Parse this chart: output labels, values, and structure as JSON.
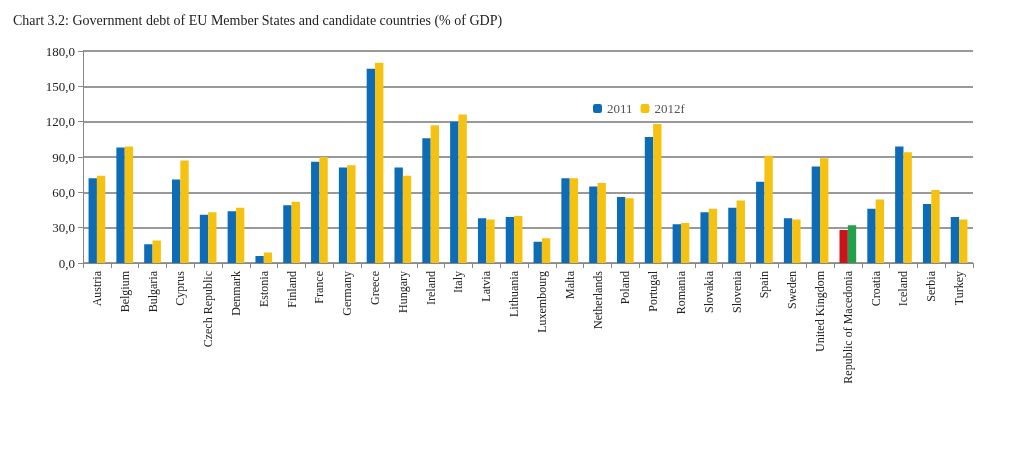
{
  "chart_data": {
    "type": "bar",
    "title": "Chart 3.2: Government debt of EU Member States and candidate countries (% of GDP)",
    "categories": [
      "Austria",
      "Belgium",
      "Bulgaria",
      "Cyprus",
      "Czech Republic",
      "Denmark",
      "Estonia",
      "Finland",
      "France",
      "Germany",
      "Greece",
      "Hungary",
      "Ireland",
      "Italy",
      "Latvia",
      "Lithuania",
      "Luxembourg",
      "Malta",
      "Netherlands",
      "Poland",
      "Portugal",
      "Romania",
      "Slovakia",
      "Slovenia",
      "Spain",
      "Sweden",
      "United Kingdom",
      "Republic of Macedonia",
      "Croatia",
      "Iceland",
      "Serbia",
      "Turkey"
    ],
    "series": [
      {
        "name": "2011",
        "color": "#0e6bb5",
        "colors": [
          "#0e6bb5",
          "#0e6bb5",
          "#0e6bb5",
          "#0e6bb5",
          "#0e6bb5",
          "#0e6bb5",
          "#0e6bb5",
          "#0e6bb5",
          "#0e6bb5",
          "#0e6bb5",
          "#0e6bb5",
          "#0e6bb5",
          "#0e6bb5",
          "#0e6bb5",
          "#0e6bb5",
          "#0e6bb5",
          "#0e6bb5",
          "#0e6bb5",
          "#0e6bb5",
          "#0e6bb5",
          "#0e6bb5",
          "#0e6bb5",
          "#0e6bb5",
          "#0e6bb5",
          "#0e6bb5",
          "#0e6bb5",
          "#0e6bb5",
          "#c8141a",
          "#0e6bb5",
          "#0e6bb5",
          "#0e6bb5",
          "#0e6bb5"
        ],
        "values": [
          72,
          98,
          16,
          71,
          41,
          44,
          6,
          49,
          86,
          81,
          165,
          81,
          106,
          120,
          38,
          39,
          18,
          72,
          65,
          56,
          107,
          33,
          43,
          47,
          69,
          38,
          82,
          28,
          46,
          99,
          50,
          39
        ]
      },
      {
        "name": "2012f",
        "color": "#f5c211",
        "colors": [
          "#f5c211",
          "#f5c211",
          "#f5c211",
          "#f5c211",
          "#f5c211",
          "#f5c211",
          "#f5c211",
          "#f5c211",
          "#f5c211",
          "#f5c211",
          "#f5c211",
          "#f5c211",
          "#f5c211",
          "#f5c211",
          "#f5c211",
          "#f5c211",
          "#f5c211",
          "#f5c211",
          "#f5c211",
          "#f5c211",
          "#f5c211",
          "#f5c211",
          "#f5c211",
          "#f5c211",
          "#f5c211",
          "#f5c211",
          "#f5c211",
          "#22a04a",
          "#f5c211",
          "#f5c211",
          "#f5c211",
          "#f5c211"
        ],
        "values": [
          74,
          99,
          19,
          87,
          43,
          47,
          9,
          52,
          90,
          83,
          170,
          74,
          117,
          126,
          37,
          40,
          21,
          72,
          68,
          55,
          118,
          34,
          46,
          53,
          91,
          37,
          89,
          32,
          54,
          94,
          62,
          37
        ]
      }
    ],
    "ylim": [
      0,
      180
    ],
    "yticks": [
      {
        "value": 0,
        "label": "0,0"
      },
      {
        "value": 30,
        "label": "30,0"
      },
      {
        "value": 60,
        "label": "60,0"
      },
      {
        "value": 90,
        "label": "90,0"
      },
      {
        "value": 120,
        "label": "120,0"
      },
      {
        "value": 150,
        "label": "150,0"
      },
      {
        "value": 180,
        "label": "180,0"
      }
    ],
    "grid": "y",
    "legend": "top"
  }
}
